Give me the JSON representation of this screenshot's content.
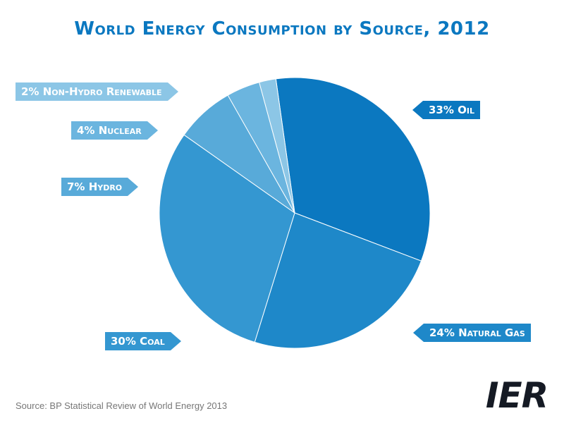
{
  "chart_data": {
    "type": "pie",
    "title": "World Energy Consumption by Source, 2012",
    "slices": [
      {
        "label": "Oil",
        "value": 33,
        "display": "33% Oil",
        "color": "#0b78c0"
      },
      {
        "label": "Natural Gas",
        "value": 24,
        "display": "24% Natural Gas",
        "color": "#1e88c9"
      },
      {
        "label": "Coal",
        "value": 30,
        "display": "30% Coal",
        "color": "#3497d1"
      },
      {
        "label": "Hydro",
        "value": 7,
        "display": "7% Hydro",
        "color": "#58aad9"
      },
      {
        "label": "Nuclear",
        "value": 4,
        "display": "4% Nuclear",
        "color": "#6bb5df"
      },
      {
        "label": "Non-Hydro Renewable",
        "value": 2,
        "display": "2% Non-Hydro Renewable",
        "color": "#8cc6e6"
      }
    ]
  },
  "source": "Source: BP Statistical Review of World Energy 2013",
  "logo_text": "IER"
}
